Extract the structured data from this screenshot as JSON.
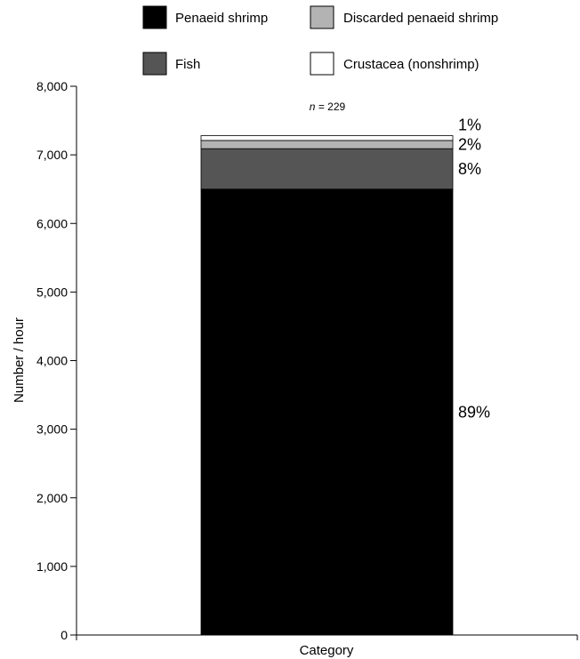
{
  "chart_data": {
    "type": "bar",
    "stacked": true,
    "categories": [
      ""
    ],
    "xlabel": "Category",
    "ylabel": "Number / hour",
    "ylim": [
      0,
      8000
    ],
    "yticks": [
      0,
      1000,
      2000,
      3000,
      4000,
      5000,
      6000,
      7000,
      8000
    ],
    "ytick_labels": [
      "0",
      "1,000",
      "2,000",
      "3,000",
      "4,000",
      "5,000",
      "6,000",
      "7,000",
      "8,000"
    ],
    "grid": false,
    "legend_position": "top",
    "annotation": {
      "italic": "n",
      "rest": " = 229"
    },
    "series": [
      {
        "name": "Penaeid shrimp",
        "values": [
          6500
        ],
        "color": "#000000",
        "label": "89%"
      },
      {
        "name": "Fish",
        "values": [
          590
        ],
        "color": "#555555",
        "label": "8%"
      },
      {
        "name": "Discarded penaeid shrimp",
        "values": [
          120
        ],
        "color": "#b3b3b3",
        "label": "2%"
      },
      {
        "name": "Crustacea (nonshrimp)",
        "values": [
          70
        ],
        "color": "#ffffff",
        "label": "1%"
      }
    ]
  }
}
